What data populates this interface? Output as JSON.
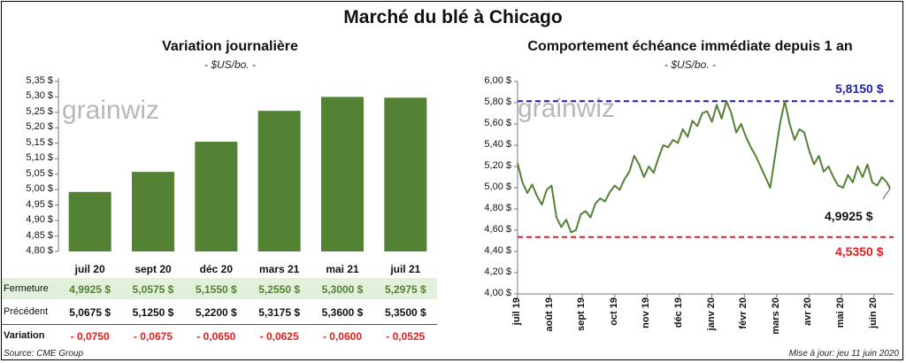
{
  "title": "Marché du blé à Chicago",
  "logo_text": "grainwiz",
  "footer": {
    "source": "Source: CME Group",
    "updated": "Mise à jour: jeu 11 juin 2020"
  },
  "table": {
    "rows": [
      {
        "label": "Fermeture",
        "values": [
          "4,9925  $",
          "5,0575  $",
          "5,1550  $",
          "5,2550  $",
          "5,3000  $",
          "5,2975  $"
        ]
      },
      {
        "label": "Précédent",
        "values": [
          "5,0675  $",
          "5,1250  $",
          "5,2200  $",
          "5,3175  $",
          "5,3600  $",
          "5,3500  $"
        ]
      },
      {
        "label": "Variation",
        "values": [
          "- 0,0750",
          "- 0,0675",
          "- 0,0650",
          "- 0,0625",
          "- 0,0600",
          "- 0,0525"
        ]
      }
    ]
  },
  "colors": {
    "bar": "#548235",
    "line": "#548235",
    "max_line": "#1f1fa8",
    "min_line": "#e02020",
    "variation": "#e02020",
    "fermeture_bg": "#e2efda"
  },
  "chart_data": [
    {
      "type": "bar",
      "title": "Variation  journalière",
      "subtitle": "- $US/bo. -",
      "categories": [
        "juil 20",
        "sept 20",
        "déc 20",
        "mars 21",
        "mai 21",
        "juil 21"
      ],
      "values": [
        4.9925,
        5.0575,
        5.155,
        5.255,
        5.3,
        5.2975
      ],
      "ylim": [
        4.8,
        5.35
      ],
      "yticks": [
        "4,80 $",
        "4,85 $",
        "4,90 $",
        "4,95 $",
        "5,00 $",
        "5,05 $",
        "5,10 $",
        "5,15 $",
        "5,20 $",
        "5,25 $",
        "5,30 $",
        "5,35 $"
      ],
      "grid": false
    },
    {
      "type": "line",
      "title": "Comportement  échéance immédiate depuis 1 an",
      "subtitle": "- $US/bo. -",
      "ylim": [
        4.0,
        6.0
      ],
      "yticks": [
        "4,00 $",
        "4,20 $",
        "4,40 $",
        "4,60 $",
        "4,80 $",
        "5,00 $",
        "5,20 $",
        "5,40 $",
        "5,60 $",
        "5,80 $",
        "6,00 $"
      ],
      "xticks": [
        "juil 19",
        "août 19",
        "sept 19",
        "oct 19",
        "nov 19",
        "déc 19",
        "janv 20",
        "févr 20",
        "mars 20",
        "avr 20",
        "mai 20",
        "juin 20"
      ],
      "max": {
        "value": 5.815,
        "label": "5,8150 $"
      },
      "min": {
        "value": 4.535,
        "label": "4,5350 $"
      },
      "last": {
        "value": 4.9925,
        "label": "4,9925 $"
      },
      "series": [
        {
          "x": [
            0,
            0.15,
            0.3,
            0.45,
            0.6,
            0.75,
            0.9,
            1.05,
            1.2,
            1.35,
            1.5,
            1.65,
            1.8,
            1.95,
            2.1,
            2.25,
            2.4,
            2.55,
            2.7,
            2.85,
            3,
            3.15,
            3.3,
            3.45,
            3.6,
            3.75,
            3.9,
            4.05,
            4.2,
            4.35,
            4.5,
            4.65,
            4.8,
            4.95,
            5.1,
            5.25,
            5.4,
            5.55,
            5.7,
            5.85,
            6,
            6.15,
            6.3,
            6.45,
            6.6,
            6.75,
            6.9,
            7.05,
            7.2,
            7.35,
            7.5,
            7.65,
            7.8,
            7.95,
            8.1,
            8.25,
            8.4,
            8.55,
            8.7,
            8.85,
            9,
            9.15,
            9.3,
            9.45,
            9.6,
            9.75,
            9.9,
            10.05,
            10.2,
            10.35,
            10.5,
            10.65,
            10.8,
            10.95,
            11.1,
            11.25,
            11.4,
            11.5
          ],
          "values": [
            5.23,
            5.05,
            4.95,
            5.03,
            4.92,
            4.84,
            4.98,
            5.02,
            4.72,
            4.63,
            4.7,
            4.58,
            4.6,
            4.75,
            4.78,
            4.72,
            4.85,
            4.9,
            4.87,
            4.96,
            5.02,
            4.98,
            5.08,
            5.15,
            5.3,
            5.22,
            5.1,
            5.2,
            5.14,
            5.28,
            5.4,
            5.38,
            5.45,
            5.42,
            5.55,
            5.48,
            5.63,
            5.58,
            5.7,
            5.72,
            5.62,
            5.78,
            5.65,
            5.815,
            5.7,
            5.52,
            5.6,
            5.48,
            5.38,
            5.3,
            5.2,
            5.1,
            5.0,
            5.3,
            5.6,
            5.815,
            5.6,
            5.45,
            5.55,
            5.52,
            5.35,
            5.22,
            5.3,
            5.15,
            5.2,
            5.1,
            5.02,
            5.0,
            5.12,
            5.05,
            5.2,
            5.1,
            5.22,
            5.05,
            5.02,
            5.1,
            5.05,
            4.9925
          ]
        }
      ]
    }
  ]
}
